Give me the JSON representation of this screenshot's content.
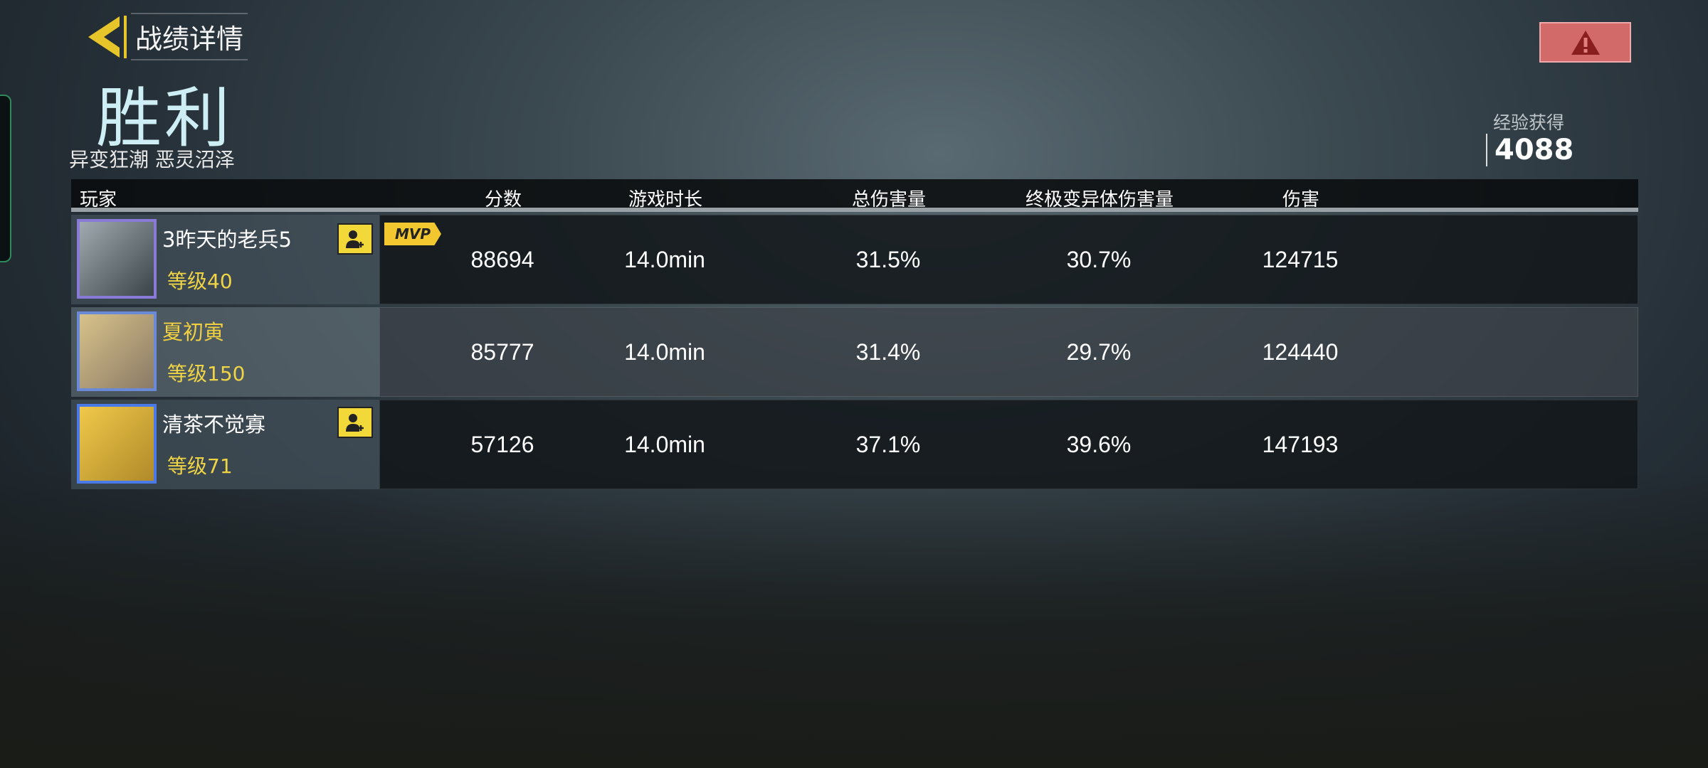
{
  "header": {
    "back_title": "战绩详情",
    "result": "胜利",
    "mode": "异变狂潮 恶灵沼泽",
    "exp_label": "经验获得",
    "exp_value": "4088"
  },
  "colors": {
    "accent": "#e6c52a",
    "warning": "#d16a68",
    "result": "#cdeef4",
    "level": "#efd446"
  },
  "table": {
    "columns": [
      "玩家",
      "分数",
      "游戏时长",
      "总伤害量",
      "终极变异体伤害量",
      "伤害"
    ],
    "rows": [
      {
        "name": "3昨天的老兵5",
        "level": "等级40",
        "mvp": "MVP",
        "score": "88694",
        "time": "14.0min",
        "total_damage": "31.5%",
        "ultimate_damage": "30.7%",
        "damage": "124715"
      },
      {
        "name": "夏初寅",
        "level": "等级150",
        "score": "85777",
        "time": "14.0min",
        "total_damage": "31.4%",
        "ultimate_damage": "29.7%",
        "damage": "124440"
      },
      {
        "name": "清茶不觉寡",
        "level": "等级71",
        "score": "57126",
        "time": "14.0min",
        "total_damage": "37.1%",
        "ultimate_damage": "39.6%",
        "damage": "147193"
      }
    ]
  }
}
